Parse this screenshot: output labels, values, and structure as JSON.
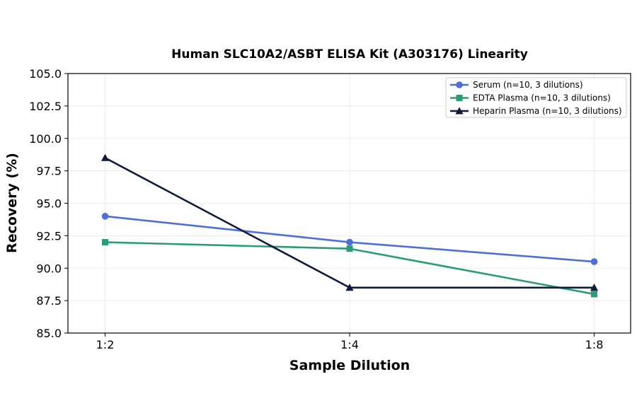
{
  "chart_data": {
    "type": "line",
    "title": "Human SLC10A2/ASBT ELISA Kit (A303176) Linearity",
    "xlabel": "Sample Dilution",
    "ylabel": "Recovery (%)",
    "categories": [
      "1:2",
      "1:4",
      "1:8"
    ],
    "ylim": [
      85.0,
      105.0
    ],
    "yticks": [
      "85.0",
      "87.5",
      "90.0",
      "92.5",
      "95.0",
      "97.5",
      "100.0",
      "102.5",
      "105.0"
    ],
    "grid": true,
    "legend_position": "top-right",
    "series": [
      {
        "name": "Serum (n=10, 3 dilutions)",
        "values": [
          94.0,
          92.0,
          90.5
        ],
        "color": "#4f6fd6",
        "marker": "circle"
      },
      {
        "name": "EDTA Plasma (n=10, 3 dilutions)",
        "values": [
          92.0,
          91.5,
          88.0
        ],
        "color": "#2a9d77",
        "marker": "square"
      },
      {
        "name": "Heparin Plasma (n=10, 3 dilutions)",
        "values": [
          98.5,
          88.5,
          88.5
        ],
        "color": "#0f1a3c",
        "marker": "triangle"
      }
    ]
  }
}
